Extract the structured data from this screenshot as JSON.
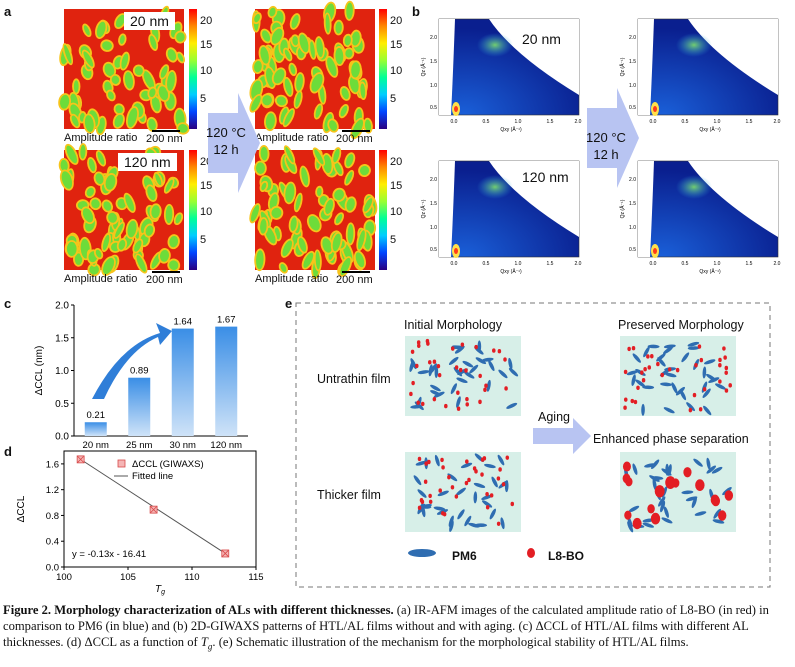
{
  "panel_a": {
    "label": "a",
    "maps": [
      {
        "thickness": "20 nm",
        "state": "before"
      },
      {
        "thickness": "20 nm",
        "state": "after"
      },
      {
        "thickness": "120 nm",
        "state": "before"
      },
      {
        "thickness": "120 nm",
        "state": "after"
      }
    ],
    "colorbar_ticks": [
      "20",
      "15",
      "10",
      "5"
    ],
    "amplitude_label": "Amplitude ratio",
    "scale_label": "200 nm",
    "label_20": "20 nm",
    "label_120": "120 nm",
    "arrow_line1": "120 °C",
    "arrow_line2": "12 h"
  },
  "panel_b": {
    "label": "b",
    "label_20": "20 nm",
    "label_120": "120 nm",
    "arrow_line1": "120 °C",
    "arrow_line2": "12 h",
    "qz_label": "Qz (Å⁻¹)",
    "qxy_label": "Qxy (Å⁻¹)",
    "qz_ticks": [
      "2.0",
      "1.5",
      "1.0",
      "0.5"
    ],
    "qxy_ticks": [
      "0.0",
      "0.5",
      "1.0",
      "1.5",
      "2.0"
    ]
  },
  "panel_c": {
    "label": "c"
  },
  "panel_d": {
    "label": "d",
    "fit_equation": "y = -0.13x - 16.41"
  },
  "panel_e": {
    "label": "e",
    "initial": "Initial Morphology",
    "preserved": "Preserved Morphology",
    "enhanced": "Enhanced phase separation",
    "untrathin": "Untrathin film",
    "thicker": "Thicker film",
    "aging": "Aging",
    "pm6": "PM6",
    "l8bo": "L8-BO",
    "pm6_color": "#2f6db1",
    "l8bo_color": "#e31e24"
  },
  "caption": {
    "fig": "Figure 2.",
    "bold_title": "Morphology characterization of ALs with different thicknesses.",
    "part_a": "(a) IR-AFM images of the calculated amplitude ratio of L8-BO (in red) in comparison to PM6 (in blue) and (b) 2D-GIWAXS patterns of HTL/AL films without and with aging. (c) ΔCCL of HTL/AL films with different AL thicknesses. (d) ΔCCL as a function of",
    "tg": "T",
    "tg_sub": "g",
    "part_b": ". (e) Schematic illustration of the mechanism for the morphological stability of HTL/AL films."
  },
  "chart_data": [
    {
      "type": "bar",
      "title": "",
      "categories": [
        "20 nm",
        "25 nm",
        "30 nm",
        "120 nm"
      ],
      "values": [
        0.21,
        0.89,
        1.64,
        1.67
      ],
      "value_labels": [
        "0.21",
        "0.89",
        "1.64",
        "1.67"
      ],
      "ylabel": "ΔCCL (nm)",
      "xlabel": "",
      "ylim": [
        0,
        2.0
      ],
      "yticks": [
        "0.0",
        "0.5",
        "1.0",
        "1.5",
        "2.0"
      ]
    },
    {
      "type": "scatter",
      "title": "",
      "series": [
        {
          "name": "ΔCCL (GIWAXS)",
          "x": [
            101.3,
            107.0,
            112.6
          ],
          "y": [
            1.67,
            0.89,
            0.21
          ]
        },
        {
          "name": "Fitted line",
          "x": [
            101.3,
            112.6
          ],
          "y": [
            1.67,
            0.21
          ]
        }
      ],
      "xlabel": "T",
      "xlabel_sub": "g",
      "ylabel": "ΔCCL",
      "xlim": [
        100,
        115
      ],
      "ylim": [
        0,
        1.8
      ],
      "xticks": [
        "100",
        "105",
        "110",
        "115"
      ],
      "yticks": [
        "0.0",
        "0.4",
        "0.8",
        "1.2",
        "1.6"
      ]
    }
  ]
}
